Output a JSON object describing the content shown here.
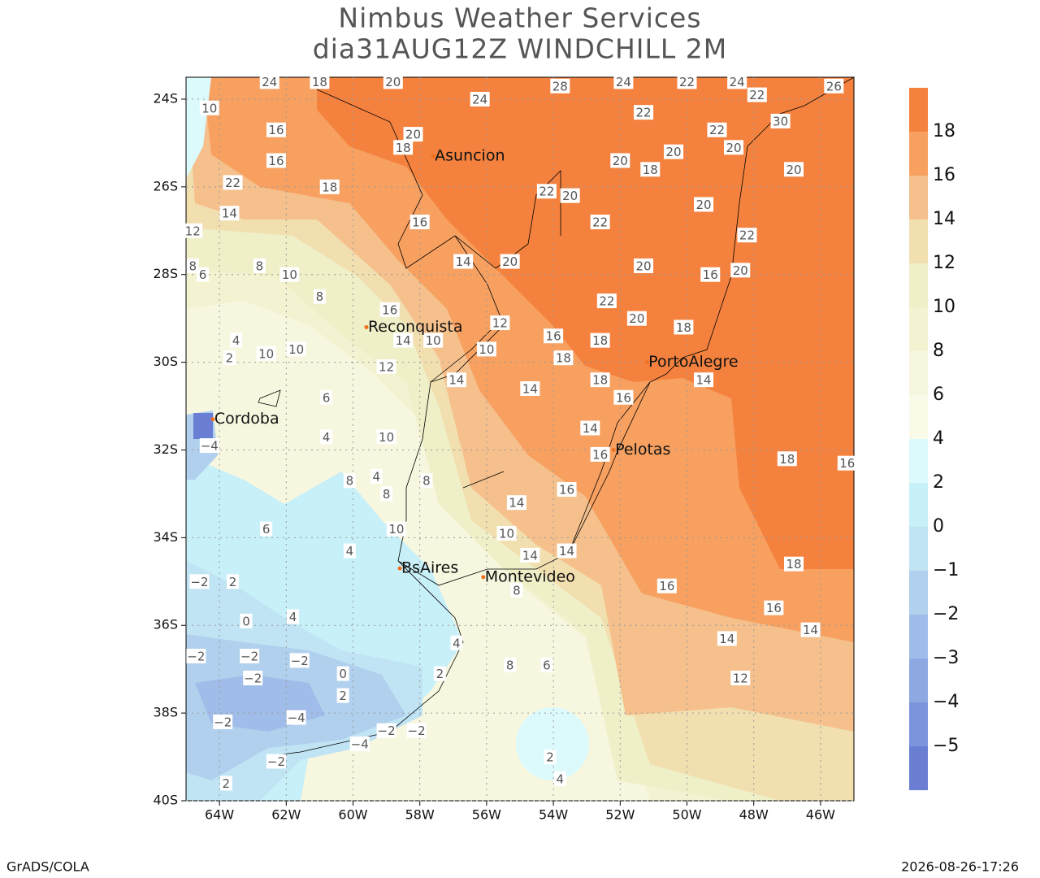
{
  "header": {
    "title": "Nimbus Weather Services",
    "subtitle": "dia31AUG12Z WINDCHILL 2M"
  },
  "map": {
    "lon_lim": [
      -65,
      -45
    ],
    "lat_lim": [
      -40,
      -23.5
    ],
    "lon_ticks": [
      {
        "value": -64,
        "label": "64W"
      },
      {
        "value": -62,
        "label": "62W"
      },
      {
        "value": -60,
        "label": "60W"
      },
      {
        "value": -58,
        "label": "58W"
      },
      {
        "value": -56,
        "label": "56W"
      },
      {
        "value": -54,
        "label": "54W"
      },
      {
        "value": -52,
        "label": "52W"
      },
      {
        "value": -50,
        "label": "50W"
      },
      {
        "value": -48,
        "label": "48W"
      },
      {
        "value": -46,
        "label": "46W"
      }
    ],
    "lat_ticks": [
      {
        "value": -24,
        "label": "24S"
      },
      {
        "value": -26,
        "label": "26S"
      },
      {
        "value": -28,
        "label": "28S"
      },
      {
        "value": -30,
        "label": "30S"
      },
      {
        "value": -32,
        "label": "32S"
      },
      {
        "value": -34,
        "label": "34S"
      },
      {
        "value": -36,
        "label": "36S"
      },
      {
        "value": -38,
        "label": "38S"
      },
      {
        "value": -40,
        "label": "40S"
      }
    ],
    "cities": [
      {
        "name": "Asuncion",
        "lon": -57.6,
        "lat": -25.3
      },
      {
        "name": "Reconquista",
        "lon": -59.6,
        "lat": -29.2
      },
      {
        "name": "Cordoba",
        "lon": -64.2,
        "lat": -31.3
      },
      {
        "name": "PortoAlegre",
        "lon": -51.2,
        "lat": -30.0
      },
      {
        "name": "Pelotas",
        "lon": -52.2,
        "lat": -32.0
      },
      {
        "name": "BsAires",
        "lon": -58.6,
        "lat": -34.7
      },
      {
        "name": "Montevideo",
        "lon": -56.1,
        "lat": -34.9
      }
    ],
    "contour_labels": [
      {
        "text": "24",
        "lon": -62.5,
        "lat": -23.6
      },
      {
        "text": "18",
        "lon": -61.0,
        "lat": -23.6
      },
      {
        "text": "20",
        "lon": -58.8,
        "lat": -23.6
      },
      {
        "text": "28",
        "lon": -53.8,
        "lat": -23.7
      },
      {
        "text": "24",
        "lon": -51.9,
        "lat": -23.6
      },
      {
        "text": "22",
        "lon": -50.0,
        "lat": -23.6
      },
      {
        "text": "24",
        "lon": -48.5,
        "lat": -23.6
      },
      {
        "text": "26",
        "lon": -45.6,
        "lat": -23.7
      },
      {
        "text": "10",
        "lon": -64.3,
        "lat": -24.2
      },
      {
        "text": "24",
        "lon": -56.2,
        "lat": -24.0
      },
      {
        "text": "16",
        "lon": -62.3,
        "lat": -24.7
      },
      {
        "text": "16",
        "lon": -62.3,
        "lat": -25.4
      },
      {
        "text": "20",
        "lon": -58.2,
        "lat": -24.8
      },
      {
        "text": "18",
        "lon": -58.5,
        "lat": -25.1
      },
      {
        "text": "22",
        "lon": -63.6,
        "lat": -25.9
      },
      {
        "text": "18",
        "lon": -60.7,
        "lat": -26.0
      },
      {
        "text": "22",
        "lon": -51.3,
        "lat": -24.3
      },
      {
        "text": "22",
        "lon": -47.9,
        "lat": -23.9
      },
      {
        "text": "20",
        "lon": -52.0,
        "lat": -25.4
      },
      {
        "text": "20",
        "lon": -50.4,
        "lat": -25.2
      },
      {
        "text": "18",
        "lon": -51.1,
        "lat": -25.6
      },
      {
        "text": "22",
        "lon": -49.1,
        "lat": -24.7
      },
      {
        "text": "20",
        "lon": -48.6,
        "lat": -25.1
      },
      {
        "text": "20",
        "lon": -46.8,
        "lat": -25.6
      },
      {
        "text": "30",
        "lon": -47.2,
        "lat": -24.5
      },
      {
        "text": "22",
        "lon": -54.2,
        "lat": -26.1
      },
      {
        "text": "20",
        "lon": -53.5,
        "lat": -26.2
      },
      {
        "text": "22",
        "lon": -52.6,
        "lat": -26.8
      },
      {
        "text": "16",
        "lon": -58.0,
        "lat": -26.8
      },
      {
        "text": "20",
        "lon": -49.5,
        "lat": -26.4
      },
      {
        "text": "22",
        "lon": -48.2,
        "lat": -27.1
      },
      {
        "text": "14",
        "lon": -56.7,
        "lat": -27.7
      },
      {
        "text": "20",
        "lon": -55.3,
        "lat": -27.7
      },
      {
        "text": "20",
        "lon": -51.3,
        "lat": -27.8
      },
      {
        "text": "16",
        "lon": -49.3,
        "lat": -28.0
      },
      {
        "text": "20",
        "lon": -48.4,
        "lat": -27.9
      },
      {
        "text": "8",
        "lon": -62.8,
        "lat": -27.8
      },
      {
        "text": "10",
        "lon": -61.9,
        "lat": -28.0
      },
      {
        "text": "8",
        "lon": -61.0,
        "lat": -28.5
      },
      {
        "text": "16",
        "lon": -58.9,
        "lat": -28.8
      },
      {
        "text": "22",
        "lon": -52.4,
        "lat": -28.6
      },
      {
        "text": "20",
        "lon": -51.5,
        "lat": -29.0
      },
      {
        "text": "18",
        "lon": -50.1,
        "lat": -29.2
      },
      {
        "text": "12",
        "lon": -55.6,
        "lat": -29.1
      },
      {
        "text": "14",
        "lon": -58.5,
        "lat": -29.5
      },
      {
        "text": "10",
        "lon": -57.6,
        "lat": -29.5
      },
      {
        "text": "16",
        "lon": -54.0,
        "lat": -29.4
      },
      {
        "text": "18",
        "lon": -52.6,
        "lat": -29.5
      },
      {
        "text": "10",
        "lon": -62.6,
        "lat": -29.8
      },
      {
        "text": "10",
        "lon": -61.7,
        "lat": -29.7
      },
      {
        "text": "12",
        "lon": -59.0,
        "lat": -30.1
      },
      {
        "text": "10",
        "lon": -56.0,
        "lat": -29.7
      },
      {
        "text": "18",
        "lon": -53.7,
        "lat": -29.9
      },
      {
        "text": "14",
        "lon": -56.9,
        "lat": -30.4
      },
      {
        "text": "18",
        "lon": -52.6,
        "lat": -30.4
      },
      {
        "text": "14",
        "lon": -49.5,
        "lat": -30.4
      },
      {
        "text": "14",
        "lon": -54.7,
        "lat": -30.6
      },
      {
        "text": "16",
        "lon": -51.9,
        "lat": -30.8
      },
      {
        "text": "6",
        "lon": -60.8,
        "lat": -30.8
      },
      {
        "text": "10",
        "lon": -59.0,
        "lat": -31.7
      },
      {
        "text": "14",
        "lon": -52.9,
        "lat": -31.5
      },
      {
        "text": "16",
        "lon": -52.6,
        "lat": -32.1
      },
      {
        "text": "4",
        "lon": -60.8,
        "lat": -31.7
      },
      {
        "text": "18",
        "lon": -47.0,
        "lat": -32.2
      },
      {
        "text": "16",
        "lon": -45.2,
        "lat": -32.3
      },
      {
        "text": "8",
        "lon": -57.8,
        "lat": -32.7
      },
      {
        "text": "14",
        "lon": -55.1,
        "lat": -33.2
      },
      {
        "text": "16",
        "lon": -53.6,
        "lat": -32.9
      },
      {
        "text": "10",
        "lon": -55.4,
        "lat": -33.9
      },
      {
        "text": "10",
        "lon": -58.7,
        "lat": -33.8
      },
      {
        "text": "6",
        "lon": -62.6,
        "lat": -33.8
      },
      {
        "text": "4",
        "lon": -60.1,
        "lat": -34.3
      },
      {
        "text": "14",
        "lon": -54.7,
        "lat": -34.4
      },
      {
        "text": "14",
        "lon": -53.6,
        "lat": -34.3
      },
      {
        "text": "18",
        "lon": -46.8,
        "lat": -34.6
      },
      {
        "text": "16",
        "lon": -50.6,
        "lat": -35.1
      },
      {
        "text": "16",
        "lon": -47.4,
        "lat": -35.6
      },
      {
        "text": "14",
        "lon": -46.3,
        "lat": -36.1
      },
      {
        "text": "14",
        "lon": -48.8,
        "lat": -36.3
      },
      {
        "text": "12",
        "lon": -48.4,
        "lat": -37.2
      },
      {
        "text": "8",
        "lon": -55.1,
        "lat": -35.2
      },
      {
        "text": "2",
        "lon": -63.6,
        "lat": -35.0
      },
      {
        "text": "−2",
        "lon": -64.6,
        "lat": -35.0
      },
      {
        "text": "0",
        "lon": -63.2,
        "lat": -35.9
      },
      {
        "text": "4",
        "lon": -61.8,
        "lat": -35.8
      },
      {
        "text": "−2",
        "lon": -64.7,
        "lat": -36.7
      },
      {
        "text": "−2",
        "lon": -63.1,
        "lat": -36.7
      },
      {
        "text": "−2",
        "lon": -61.6,
        "lat": -36.8
      },
      {
        "text": "−2",
        "lon": -63.0,
        "lat": -37.2
      },
      {
        "text": "0",
        "lon": -60.3,
        "lat": -37.1
      },
      {
        "text": "2",
        "lon": -60.3,
        "lat": -37.6
      },
      {
        "text": "4",
        "lon": -56.9,
        "lat": -36.4
      },
      {
        "text": "8",
        "lon": -55.3,
        "lat": -36.9
      },
      {
        "text": "6",
        "lon": -54.2,
        "lat": -36.9
      },
      {
        "text": "2",
        "lon": -57.4,
        "lat": -37.1
      },
      {
        "text": "−4",
        "lon": -61.7,
        "lat": -38.1
      },
      {
        "text": "−2",
        "lon": -63.9,
        "lat": -38.2
      },
      {
        "text": "−2",
        "lon": -59.0,
        "lat": -38.4
      },
      {
        "text": "−2",
        "lon": -58.1,
        "lat": -38.4
      },
      {
        "text": "−4",
        "lon": -59.8,
        "lat": -38.7
      },
      {
        "text": "−2",
        "lon": -62.3,
        "lat": -39.1
      },
      {
        "text": "2",
        "lon": -54.1,
        "lat": -39.0
      },
      {
        "text": "4",
        "lon": -53.8,
        "lat": -39.5
      },
      {
        "text": "2",
        "lon": -63.8,
        "lat": -39.6
      },
      {
        "text": "−4",
        "lon": -64.3,
        "lat": -31.9
      },
      {
        "text": "2",
        "lon": -63.7,
        "lat": -29.9
      },
      {
        "text": "4",
        "lon": -63.5,
        "lat": -29.5
      },
      {
        "text": "8",
        "lon": -60.1,
        "lat": -32.7
      },
      {
        "text": "4",
        "lon": -59.3,
        "lat": -32.6
      },
      {
        "text": "8",
        "lon": -59.0,
        "lat": -33.0
      },
      {
        "text": "12",
        "lon": -64.8,
        "lat": -27.0
      },
      {
        "text": "6",
        "lon": -64.5,
        "lat": -28.0
      },
      {
        "text": "8",
        "lon": -64.8,
        "lat": -27.8
      },
      {
        "text": "14",
        "lon": -63.7,
        "lat": -26.6
      }
    ]
  },
  "colorbar": {
    "levels": [
      {
        "value": -5,
        "label": "−5"
      },
      {
        "value": -4,
        "label": "−4"
      },
      {
        "value": -3,
        "label": "−3"
      },
      {
        "value": -2,
        "label": "−2"
      },
      {
        "value": -1,
        "label": "−1"
      },
      0,
      2,
      4,
      6,
      8,
      10,
      12,
      14,
      16,
      18
    ],
    "colors": [
      "#6a7fd4",
      "#7c94dc",
      "#8ea8e2",
      "#a0bce8",
      "#b0d0ee",
      "#c0e4f4",
      "#c8f0f8",
      "#dcf9fc",
      "#fafae8",
      "#f7f7e0",
      "#f3f3d2",
      "#efefc8",
      "#f2dfb0",
      "#f5c08c",
      "#f7a060",
      "#f4823e"
    ]
  },
  "footer": {
    "left": "GrADS/COLA",
    "right": "2026-08-26-17:26"
  }
}
